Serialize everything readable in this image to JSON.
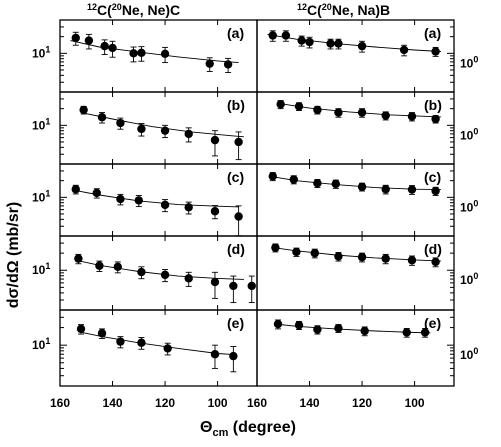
{
  "chart_data": {
    "type": "scatter",
    "ylabel_html": "dσ/dΩ (mb/sr)",
    "xlabel": "Θ",
    "xlabel_sub": "cm",
    "xlabel_unit": " (degree)",
    "xlim": [
      160,
      85
    ],
    "y_scale": "log",
    "columns": [
      {
        "id": "ne",
        "title_super": "12",
        "title_pre": "C(",
        "title_super2": "20",
        "title_post": "Ne, Ne)C",
        "ytick_labels": [
          "10",
          "",
          "",
          "",
          "",
          "10"
        ],
        "ytick_superscript": [
          "1",
          "",
          "",
          "",
          "",
          "1"
        ],
        "ylabel_side": "left"
      },
      {
        "id": "na",
        "title_super": "12",
        "title_pre": "C(",
        "title_super2": "20",
        "title_post": "Ne, Na)B",
        "ylabel_side": "right"
      }
    ],
    "panels": [
      {
        "col": "ne",
        "row": 0,
        "label": "(a)",
        "ylim": [
          2,
          40
        ],
        "ytick": {
          "label": "10",
          "exp": "1",
          "value": 10
        },
        "points": [
          {
            "x": 154,
            "y": 19,
            "err": 5
          },
          {
            "x": 149,
            "y": 17,
            "err": 5
          },
          {
            "x": 143,
            "y": 13.5,
            "err": 4
          },
          {
            "x": 140,
            "y": 12.5,
            "err": 4
          },
          {
            "x": 132,
            "y": 10,
            "err": 3
          },
          {
            "x": 129,
            "y": 10.2,
            "err": 3
          },
          {
            "x": 120,
            "y": 9.8,
            "err": 3
          },
          {
            "x": 103,
            "y": 6.5,
            "err": 1.8
          },
          {
            "x": 96,
            "y": 6.3,
            "err": 1.8
          }
        ],
        "fit": [
          [
            156,
            17
          ],
          [
            145,
            13
          ],
          [
            130,
            10.5
          ],
          [
            115,
            8.6
          ],
          [
            100,
            7.3
          ],
          [
            92,
            6.8
          ]
        ]
      },
      {
        "col": "ne",
        "row": 1,
        "label": "(b)",
        "ylim": [
          2,
          40
        ],
        "ytick": {
          "label": "10",
          "exp": "1",
          "value": 10
        },
        "points": [
          {
            "x": 151,
            "y": 19,
            "err": 3
          },
          {
            "x": 144,
            "y": 14,
            "err": 3
          },
          {
            "x": 137,
            "y": 11,
            "err": 2.5
          },
          {
            "x": 129,
            "y": 8.6,
            "err": 2.2
          },
          {
            "x": 120,
            "y": 8,
            "err": 2
          },
          {
            "x": 111,
            "y": 7,
            "err": 2
          },
          {
            "x": 101,
            "y": 5.4,
            "err": 2.6
          },
          {
            "x": 92,
            "y": 5,
            "err": 2.6
          }
        ],
        "fit": [
          [
            152,
            17
          ],
          [
            140,
            13
          ],
          [
            125,
            9.5
          ],
          [
            110,
            7.6
          ],
          [
            95,
            6.5
          ],
          [
            90,
            6.2
          ]
        ]
      },
      {
        "col": "ne",
        "row": 2,
        "label": "(c)",
        "ylim": [
          2,
          40
        ],
        "ytick": {
          "label": "10",
          "exp": "1",
          "value": 10
        },
        "points": [
          {
            "x": 154,
            "y": 14,
            "err": 2.5
          },
          {
            "x": 146,
            "y": 12,
            "err": 2.3
          },
          {
            "x": 137,
            "y": 9.3,
            "err": 2
          },
          {
            "x": 130,
            "y": 8.8,
            "err": 2
          },
          {
            "x": 120,
            "y": 7.3,
            "err": 1.8
          },
          {
            "x": 111,
            "y": 6.6,
            "err": 1.6
          },
          {
            "x": 101,
            "y": 5.6,
            "err": 1.5
          },
          {
            "x": 92,
            "y": 4.5,
            "err": 2.5
          }
        ],
        "fit": [
          [
            155,
            13.5
          ],
          [
            145,
            11
          ],
          [
            130,
            8.6
          ],
          [
            115,
            7.4
          ],
          [
            100,
            6.9
          ],
          [
            92,
            6.7
          ]
        ]
      },
      {
        "col": "ne",
        "row": 3,
        "label": "(d)",
        "ylim": [
          2,
          40
        ],
        "ytick": {
          "label": "10",
          "exp": "1",
          "value": 10
        },
        "points": [
          {
            "x": 153,
            "y": 16,
            "err": 3
          },
          {
            "x": 145,
            "y": 12,
            "err": 2.5
          },
          {
            "x": 138,
            "y": 11.5,
            "err": 2.5
          },
          {
            "x": 129,
            "y": 9.3,
            "err": 2.2
          },
          {
            "x": 120,
            "y": 8.3,
            "err": 2
          },
          {
            "x": 111,
            "y": 7.2,
            "err": 2
          },
          {
            "x": 101,
            "y": 6.2,
            "err": 3
          },
          {
            "x": 94,
            "y": 5.3,
            "err": 2.6
          },
          {
            "x": 87,
            "y": 5.3,
            "err": 2.6
          }
        ],
        "fit": [
          [
            154,
            15
          ],
          [
            145,
            12.2
          ],
          [
            130,
            9.5
          ],
          [
            115,
            7.9
          ],
          [
            100,
            7.2
          ],
          [
            90,
            6.9
          ]
        ]
      },
      {
        "col": "ne",
        "row": 4,
        "label": "(e)",
        "ylim": [
          2,
          40
        ],
        "ytick": {
          "label": "10",
          "exp": "1",
          "value": 10
        },
        "points": [
          {
            "x": 152,
            "y": 19,
            "err": 3.5
          },
          {
            "x": 144,
            "y": 16,
            "err": 3
          },
          {
            "x": 137,
            "y": 11.5,
            "err": 2.5
          },
          {
            "x": 129,
            "y": 11,
            "err": 2.5
          },
          {
            "x": 119,
            "y": 8.8,
            "err": 2
          },
          {
            "x": 101,
            "y": 7,
            "err": 3
          },
          {
            "x": 94,
            "y": 6.5,
            "err": 3
          }
        ],
        "fit": [
          [
            153,
            17
          ],
          [
            144,
            14
          ],
          [
            130,
            11
          ],
          [
            115,
            8.8
          ],
          [
            100,
            7.2
          ],
          [
            94,
            6.9
          ]
        ]
      },
      {
        "col": "na",
        "row": 0,
        "label": "(a)",
        "ylim": [
          0.2,
          4
        ],
        "ytick": {
          "label": "10",
          "exp": "0",
          "value": 1
        },
        "points": [
          {
            "x": 154,
            "y": 2.1,
            "err": 0.45
          },
          {
            "x": 149,
            "y": 2.1,
            "err": 0.45
          },
          {
            "x": 143,
            "y": 1.7,
            "err": 0.35
          },
          {
            "x": 140,
            "y": 1.6,
            "err": 0.35
          },
          {
            "x": 132,
            "y": 1.5,
            "err": 0.3
          },
          {
            "x": 129,
            "y": 1.5,
            "err": 0.3
          },
          {
            "x": 120,
            "y": 1.35,
            "err": 0.3
          },
          {
            "x": 104,
            "y": 1.15,
            "err": 0.25
          },
          {
            "x": 92,
            "y": 1.08,
            "err": 0.2
          }
        ],
        "fit": [
          [
            156,
            2.2
          ],
          [
            145,
            1.8
          ],
          [
            130,
            1.5
          ],
          [
            115,
            1.3
          ],
          [
            100,
            1.15
          ],
          [
            90,
            1.08
          ]
        ]
      },
      {
        "col": "na",
        "row": 1,
        "label": "(b)",
        "ylim": [
          0.2,
          4
        ],
        "ytick": {
          "label": "10",
          "exp": "0",
          "value": 1
        },
        "points": [
          {
            "x": 151,
            "y": 2.4,
            "err": 0.4
          },
          {
            "x": 144,
            "y": 2.2,
            "err": 0.35
          },
          {
            "x": 137,
            "y": 1.9,
            "err": 0.3
          },
          {
            "x": 129,
            "y": 1.7,
            "err": 0.3
          },
          {
            "x": 120,
            "y": 1.7,
            "err": 0.3
          },
          {
            "x": 111,
            "y": 1.5,
            "err": 0.25
          },
          {
            "x": 101,
            "y": 1.45,
            "err": 0.25
          },
          {
            "x": 92,
            "y": 1.3,
            "err": 0.2
          }
        ],
        "fit": [
          [
            152,
            2.5
          ],
          [
            140,
            2.05
          ],
          [
            125,
            1.75
          ],
          [
            110,
            1.55
          ],
          [
            95,
            1.45
          ],
          [
            90,
            1.42
          ]
        ]
      },
      {
        "col": "na",
        "row": 2,
        "label": "(c)",
        "ylim": [
          0.2,
          4
        ],
        "ytick": {
          "label": "10",
          "exp": "0",
          "value": 1
        },
        "points": [
          {
            "x": 154,
            "y": 2.4,
            "err": 0.4
          },
          {
            "x": 146,
            "y": 2.1,
            "err": 0.35
          },
          {
            "x": 137,
            "y": 1.8,
            "err": 0.3
          },
          {
            "x": 130,
            "y": 1.75,
            "err": 0.3
          },
          {
            "x": 120,
            "y": 1.55,
            "err": 0.25
          },
          {
            "x": 111,
            "y": 1.4,
            "err": 0.25
          },
          {
            "x": 101,
            "y": 1.38,
            "err": 0.25
          },
          {
            "x": 92,
            "y": 1.3,
            "err": 0.22
          }
        ],
        "fit": [
          [
            155,
            2.4
          ],
          [
            145,
            2.0
          ],
          [
            130,
            1.7
          ],
          [
            115,
            1.5
          ],
          [
            100,
            1.4
          ],
          [
            90,
            1.38
          ]
        ]
      },
      {
        "col": "na",
        "row": 3,
        "label": "(d)",
        "ylim": [
          0.2,
          4
        ],
        "ytick": {
          "label": "10",
          "exp": "0",
          "value": 1
        },
        "points": [
          {
            "x": 153,
            "y": 2.5,
            "err": 0.4
          },
          {
            "x": 145,
            "y": 2.1,
            "err": 0.35
          },
          {
            "x": 138,
            "y": 2.0,
            "err": 0.35
          },
          {
            "x": 129,
            "y": 1.75,
            "err": 0.3
          },
          {
            "x": 120,
            "y": 1.7,
            "err": 0.3
          },
          {
            "x": 111,
            "y": 1.6,
            "err": 0.3
          },
          {
            "x": 101,
            "y": 1.5,
            "err": 0.28
          },
          {
            "x": 92,
            "y": 1.4,
            "err": 0.25
          }
        ],
        "fit": [
          [
            154,
            2.5
          ],
          [
            145,
            2.2
          ],
          [
            130,
            1.85
          ],
          [
            115,
            1.65
          ],
          [
            100,
            1.52
          ],
          [
            90,
            1.45
          ]
        ]
      },
      {
        "col": "na",
        "row": 4,
        "label": "(e)",
        "ylim": [
          0.2,
          4
        ],
        "ytick": {
          "label": "10",
          "exp": "0",
          "value": 1
        },
        "points": [
          {
            "x": 152,
            "y": 2.3,
            "err": 0.4
          },
          {
            "x": 144,
            "y": 2.2,
            "err": 0.35
          },
          {
            "x": 137,
            "y": 1.85,
            "err": 0.3
          },
          {
            "x": 129,
            "y": 1.95,
            "err": 0.3
          },
          {
            "x": 119,
            "y": 1.75,
            "err": 0.3
          },
          {
            "x": 103,
            "y": 1.65,
            "err": 0.28
          },
          {
            "x": 96,
            "y": 1.65,
            "err": 0.28
          }
        ],
        "fit": [
          [
            153,
            2.3
          ],
          [
            145,
            2.1
          ],
          [
            130,
            1.9
          ],
          [
            115,
            1.75
          ],
          [
            100,
            1.65
          ],
          [
            94,
            1.63
          ]
        ]
      }
    ],
    "xticks": [
      160,
      140,
      120,
      100
    ],
    "xticks_right_extra": [
      160,
      140,
      120,
      100
    ],
    "xtick_labels_left": [
      "160",
      "140",
      "120",
      "100"
    ],
    "xtick_labels_right": [
      "160",
      "140",
      "120",
      "100"
    ],
    "grid": false
  }
}
